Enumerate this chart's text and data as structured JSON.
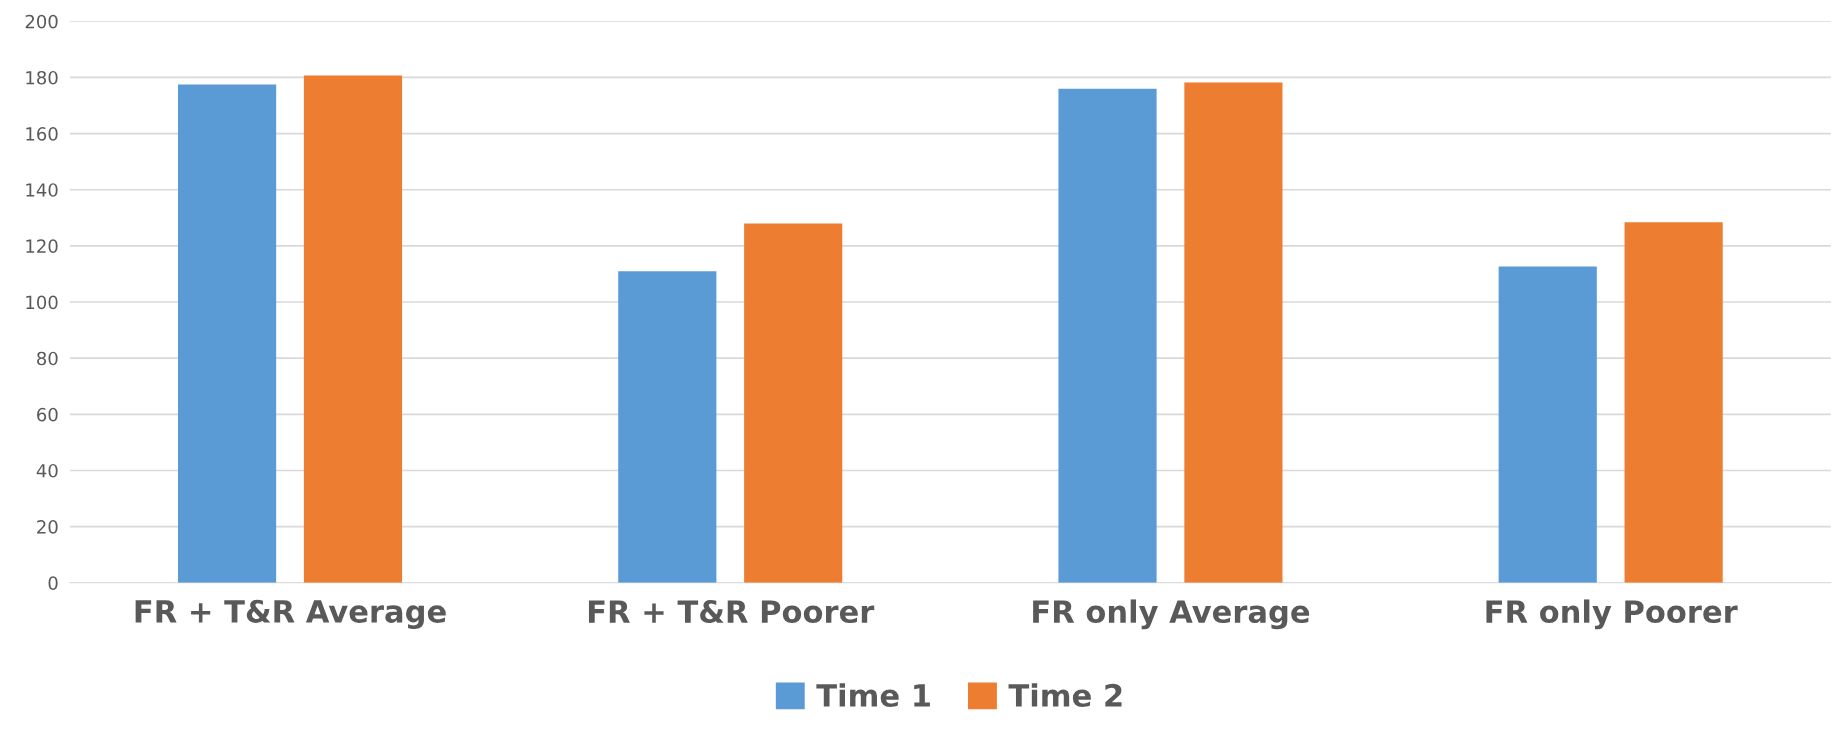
{
  "chart_data": {
    "type": "bar",
    "categories": [
      "FR + T&R Average",
      "FR + T&R Poorer",
      "FR only Average",
      "FR only Poorer"
    ],
    "series": [
      {
        "name": "Time 1",
        "color": "#5b9bd5",
        "values": [
          177.5,
          111,
          176,
          112.7
        ]
      },
      {
        "name": "Time 2",
        "color": "#ed7d31",
        "values": [
          180.7,
          128,
          178.2,
          128.4
        ]
      }
    ],
    "ylim": [
      0,
      200
    ],
    "yticks": [
      0,
      20,
      40,
      60,
      80,
      100,
      120,
      140,
      160,
      180,
      200
    ],
    "grid": "y",
    "legend": "bottom"
  }
}
